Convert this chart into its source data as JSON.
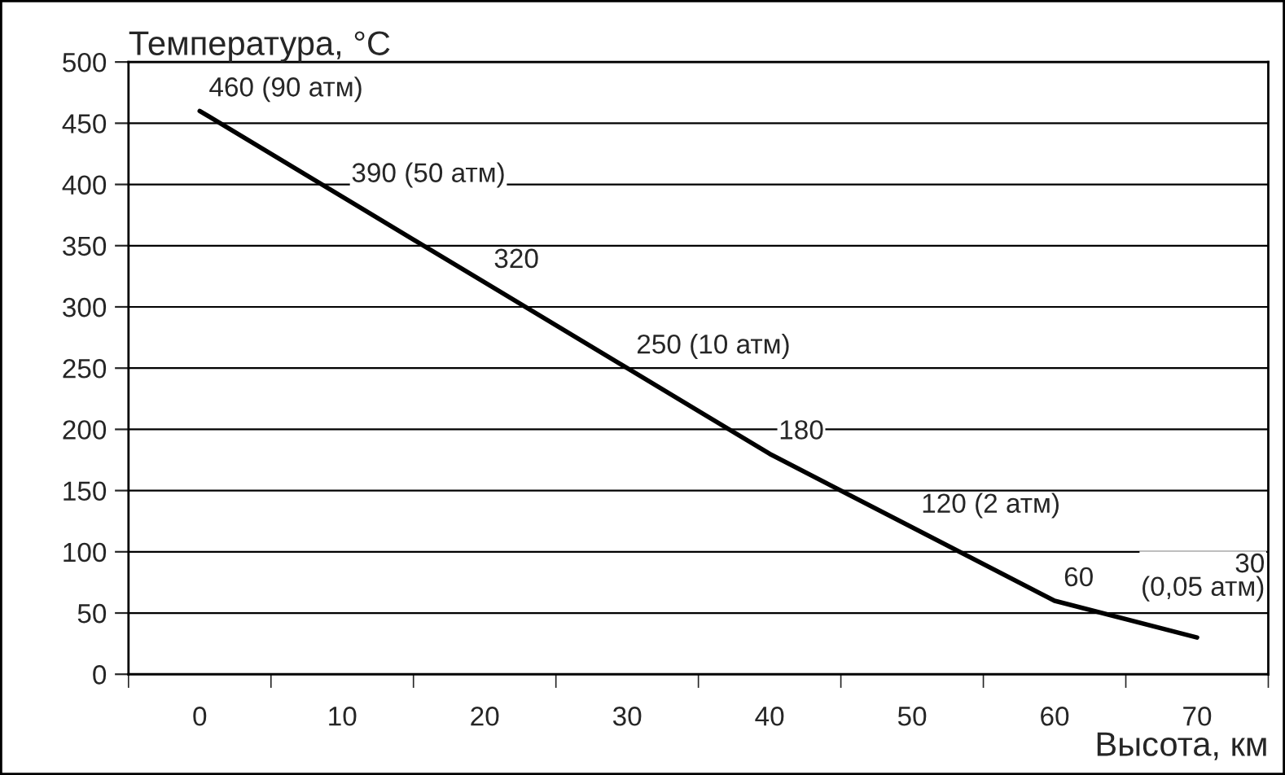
{
  "chart_data": {
    "type": "line",
    "categories": [
      "0",
      "10",
      "20",
      "30",
      "40",
      "50",
      "60",
      "70"
    ],
    "xlabel": "Высота, км",
    "ylabel": "Температура, °C",
    "series": [
      {
        "color": "#000000",
        "values": [
          460,
          390,
          320,
          250,
          180,
          120,
          60,
          30
        ],
        "value_labels": [
          "460 (90 атм)",
          "390 (50 атм)",
          "320",
          "250 (10 атм)",
          "180",
          "120 (2 атм)",
          "60",
          "30\n(0,05 атм)"
        ]
      }
    ],
    "ylim": [
      0,
      500
    ],
    "yticks": [
      0,
      50,
      100,
      150,
      200,
      250,
      300,
      350,
      400,
      450,
      500
    ],
    "grid": "y",
    "marker": "none",
    "line_style": "solid",
    "legend": false
  }
}
